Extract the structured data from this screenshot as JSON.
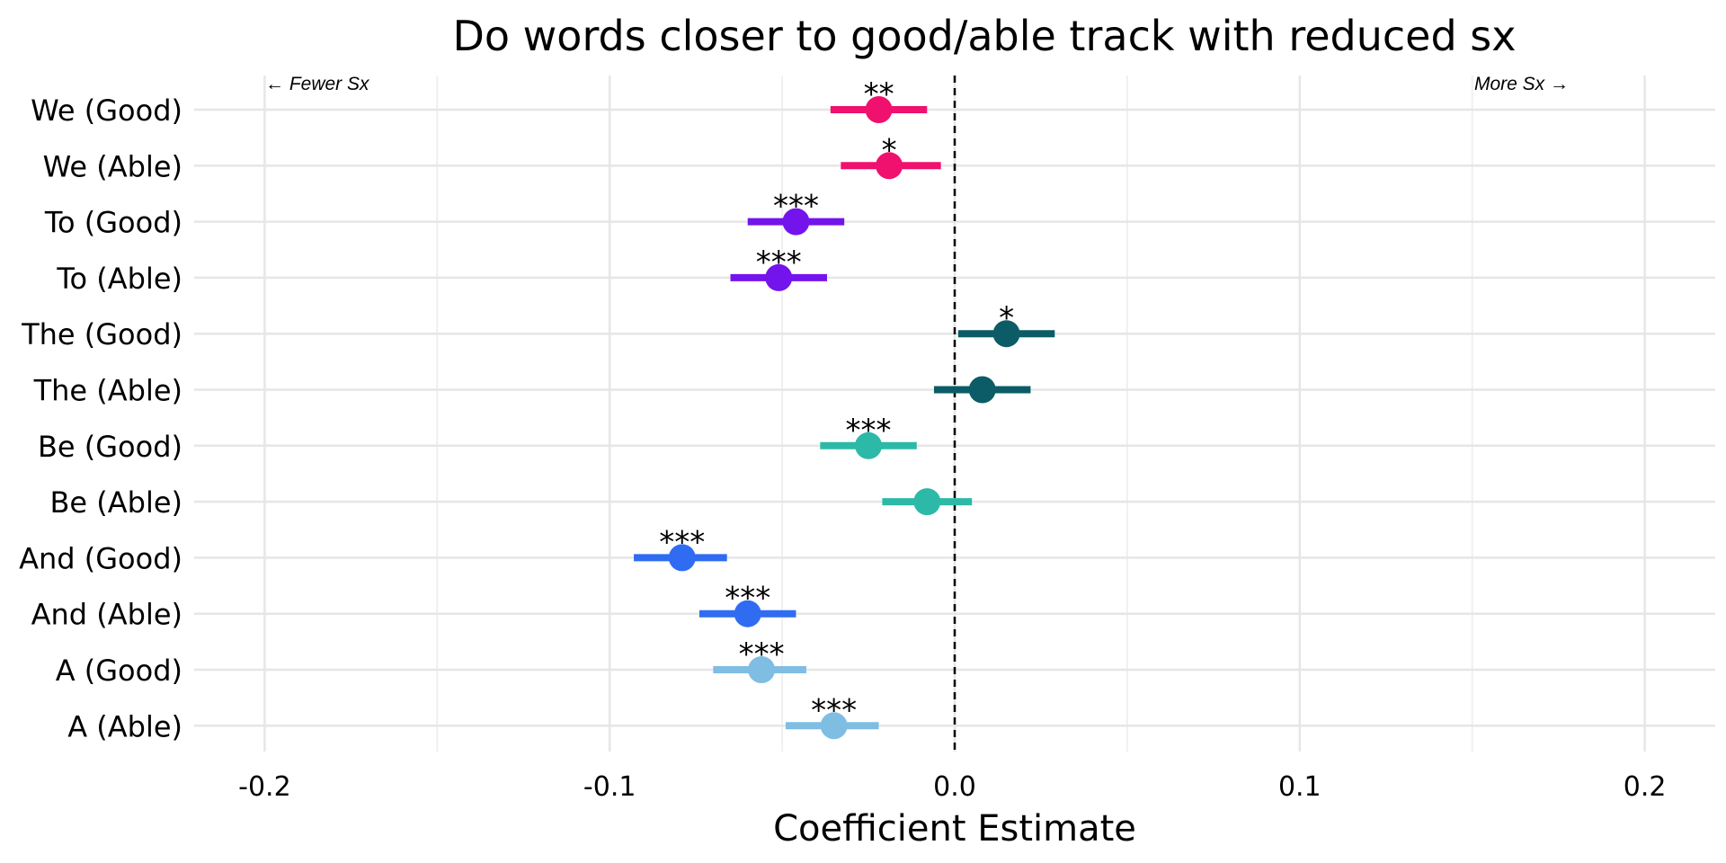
{
  "chart_data": {
    "type": "scatter",
    "title": "Do words closer to good/able track with reduced sx",
    "xlabel": "Coefficient Estimate",
    "ylabel": "",
    "xlim": [
      -0.22,
      0.22
    ],
    "x_ticks": [
      -0.2,
      -0.1,
      0.0,
      0.1,
      0.2
    ],
    "x_tick_labels": [
      "-0.2",
      "-0.1",
      "0.0",
      "0.1",
      "0.2"
    ],
    "minor_x_gridlines": [
      -0.15,
      -0.05,
      0.05,
      0.15
    ],
    "grid": true,
    "reference_line_x": 0,
    "annotations": {
      "left": "← Fewer Sx",
      "right": "More Sx →"
    },
    "categories": [
      "We (Good)",
      "We (Able)",
      "To (Good)",
      "To (Able)",
      "The (Good)",
      "The (Able)",
      "Be (Good)",
      "Be (Able)",
      "And (Good)",
      "And (Able)",
      "A (Good)",
      "A (Able)"
    ],
    "points": [
      {
        "label": "We (Good)",
        "estimate": -0.022,
        "ci_low": -0.036,
        "ci_high": -0.008,
        "sig": "**",
        "color": "#f0106e"
      },
      {
        "label": "We (Able)",
        "estimate": -0.019,
        "ci_low": -0.033,
        "ci_high": -0.004,
        "sig": "*",
        "color": "#f0106e"
      },
      {
        "label": "To (Good)",
        "estimate": -0.046,
        "ci_low": -0.06,
        "ci_high": -0.032,
        "sig": "***",
        "color": "#7414ec"
      },
      {
        "label": "To (Able)",
        "estimate": -0.051,
        "ci_low": -0.065,
        "ci_high": -0.037,
        "sig": "***",
        "color": "#7414ec"
      },
      {
        "label": "The (Good)",
        "estimate": 0.015,
        "ci_low": 0.001,
        "ci_high": 0.029,
        "sig": "*",
        "color": "#0b5c66"
      },
      {
        "label": "The (Able)",
        "estimate": 0.008,
        "ci_low": -0.006,
        "ci_high": 0.022,
        "sig": "",
        "color": "#0b5c66"
      },
      {
        "label": "Be (Good)",
        "estimate": -0.025,
        "ci_low": -0.039,
        "ci_high": -0.011,
        "sig": "***",
        "color": "#2db9a8"
      },
      {
        "label": "Be (Able)",
        "estimate": -0.008,
        "ci_low": -0.021,
        "ci_high": 0.005,
        "sig": "",
        "color": "#2db9a8"
      },
      {
        "label": "And (Good)",
        "estimate": -0.079,
        "ci_low": -0.093,
        "ci_high": -0.066,
        "sig": "***",
        "color": "#2f6cf2"
      },
      {
        "label": "And (Able)",
        "estimate": -0.06,
        "ci_low": -0.074,
        "ci_high": -0.046,
        "sig": "***",
        "color": "#2f6cf2"
      },
      {
        "label": "A (Good)",
        "estimate": -0.056,
        "ci_low": -0.07,
        "ci_high": -0.043,
        "sig": "***",
        "color": "#7fbde3"
      },
      {
        "label": "A (Able)",
        "estimate": -0.035,
        "ci_low": -0.049,
        "ci_high": -0.022,
        "sig": "***",
        "color": "#7fbde3"
      }
    ]
  }
}
